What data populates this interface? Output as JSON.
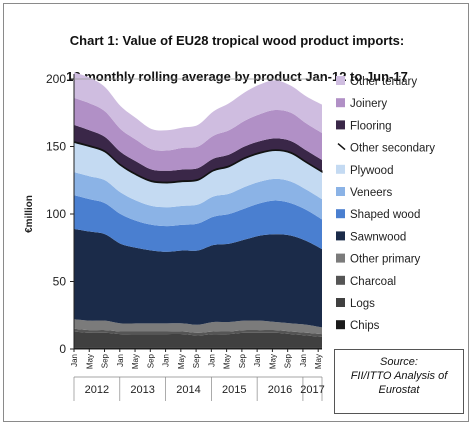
{
  "title_line1": "Chart 1: Value of EU28 tropical wood product imports:",
  "title_line2": "12 monthly rolling average by product Jan-12 to Jun-17",
  "source": {
    "line1": "Source:",
    "line2": "FII/ITTO Analysis of",
    "line3": "Eurostat"
  },
  "chart_data": {
    "type": "area",
    "stacked": true,
    "title": "Chart 1: Value of EU28 tropical wood product imports: 12 monthly rolling average by product Jan-12 to Jun-17",
    "ylabel": "€million",
    "xlabel": "",
    "ylim": [
      0,
      200
    ],
    "yticks": [
      0,
      50,
      100,
      150,
      200
    ],
    "grid": false,
    "legend_position": "right",
    "month_ticks": [
      "Jan",
      "May",
      "Sep",
      "Jan",
      "May",
      "Sep",
      "Jan",
      "May",
      "Sep",
      "Jan",
      "May",
      "Sep",
      "Jan",
      "May",
      "Sep",
      "Jan",
      "May"
    ],
    "years": [
      "2012",
      "2013",
      "2014",
      "2015",
      "2016",
      "2017"
    ],
    "x": [
      "Jan-12",
      "May-12",
      "Sep-12",
      "Jan-13",
      "May-13",
      "Sep-13",
      "Jan-14",
      "May-14",
      "Sep-14",
      "Jan-15",
      "May-15",
      "Sep-15",
      "Jan-16",
      "May-16",
      "Sep-16",
      "Jan-17",
      "Jun-17"
    ],
    "series": [
      {
        "name": "Chips",
        "color": "#1a1a1a",
        "values": [
          1,
          1,
          1,
          1,
          1,
          1,
          1,
          1,
          1,
          1,
          1,
          1,
          1,
          1,
          1,
          1,
          1
        ]
      },
      {
        "name": "Logs",
        "color": "#404040",
        "values": [
          12,
          11,
          11,
          10,
          10,
          10,
          10,
          10,
          9,
          10,
          10,
          11,
          11,
          11,
          10,
          9,
          8
        ]
      },
      {
        "name": "Charcoal",
        "color": "#555555",
        "values": [
          2,
          2,
          2,
          2,
          2,
          2,
          2,
          2,
          2,
          2,
          2,
          2,
          2,
          2,
          2,
          2,
          2
        ]
      },
      {
        "name": "Other primary",
        "color": "#7b7b7b",
        "values": [
          7,
          7,
          7,
          6,
          6,
          6,
          6,
          6,
          6,
          7,
          7,
          7,
          7,
          6,
          6,
          6,
          5
        ]
      },
      {
        "name": "Sawnwood",
        "color": "#1b2b49",
        "values": [
          67,
          66,
          64,
          59,
          56,
          54,
          53,
          54,
          55,
          57,
          58,
          60,
          63,
          65,
          65,
          62,
          58
        ]
      },
      {
        "name": "Shaped wood",
        "color": "#4a7fd0",
        "values": [
          25,
          24,
          23,
          22,
          20,
          19,
          19,
          19,
          20,
          21,
          22,
          23,
          24,
          25,
          24,
          23,
          22
        ]
      },
      {
        "name": "Veneers",
        "color": "#8bb3e6",
        "values": [
          17,
          17,
          17,
          16,
          15,
          14,
          14,
          14,
          14,
          15,
          15,
          16,
          16,
          16,
          16,
          15,
          15
        ]
      },
      {
        "name": "Plywood",
        "color": "#c4daf2",
        "values": [
          22,
          22,
          21,
          20,
          19,
          18,
          18,
          18,
          18,
          19,
          20,
          21,
          21,
          21,
          21,
          20,
          20
        ]
      },
      {
        "name": "Other secondary",
        "color": "#1a1a1a",
        "values": [
          1,
          1,
          1,
          1,
          1,
          1,
          1,
          1,
          1,
          1,
          1,
          1,
          1,
          1,
          1,
          1,
          1
        ]
      },
      {
        "name": "Flooring",
        "color": "#3a2748",
        "values": [
          12,
          11,
          10,
          9,
          9,
          8,
          8,
          8,
          8,
          8,
          8,
          8,
          8,
          8,
          8,
          8,
          8
        ]
      },
      {
        "name": "Joinery",
        "color": "#b190c6",
        "values": [
          20,
          20,
          19,
          17,
          16,
          15,
          15,
          16,
          16,
          17,
          18,
          19,
          20,
          21,
          21,
          20,
          20
        ]
      },
      {
        "name": "Other tertiary",
        "color": "#cfbde0",
        "values": [
          19,
          19,
          18,
          17,
          16,
          15,
          15,
          15,
          16,
          18,
          20,
          21,
          22,
          22,
          20,
          20,
          21
        ]
      }
    ]
  }
}
